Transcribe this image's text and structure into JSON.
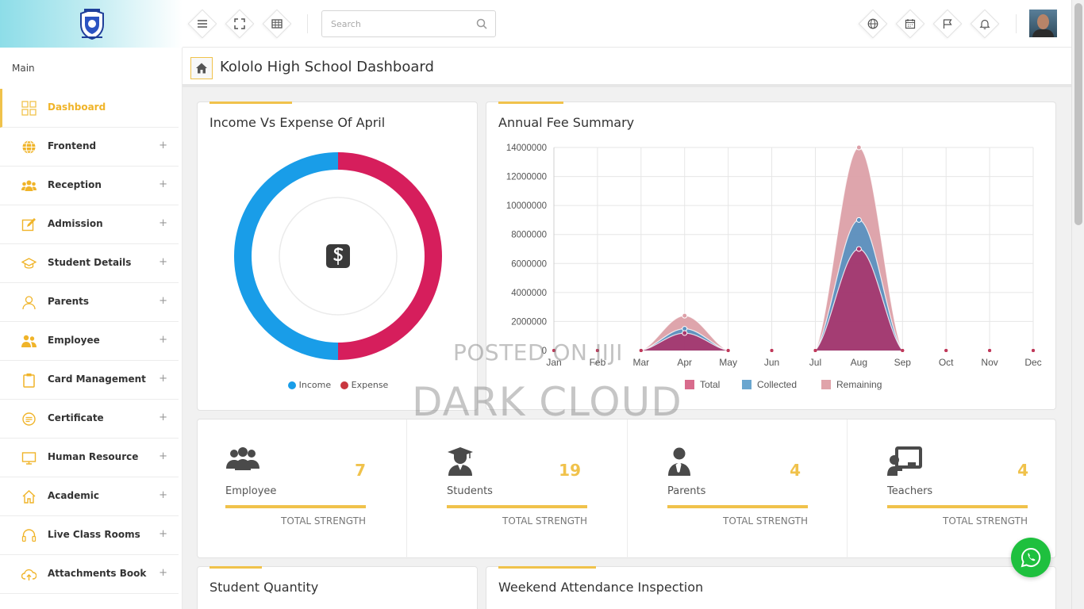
{
  "header": {
    "search_placeholder": "Search",
    "toolbar_icons": [
      "menu-icon",
      "fullscreen-icon",
      "grid-icon"
    ],
    "right_icons": [
      "globe-icon",
      "calendar-icon",
      "flag-icon",
      "bell-icon"
    ]
  },
  "sidebar": {
    "section_label": "Main",
    "items": [
      {
        "label": "Dashboard",
        "icon": "dashboard-icon",
        "active": true
      },
      {
        "label": "Frontend",
        "icon": "globe-icon",
        "expandable": "+"
      },
      {
        "label": "Reception",
        "icon": "users-icon",
        "expandable": "+"
      },
      {
        "label": "Admission",
        "icon": "edit-icon",
        "expandable": "+"
      },
      {
        "label": "Student Details",
        "icon": "graduation-cap-icon",
        "expandable": "+"
      },
      {
        "label": "Parents",
        "icon": "user-icon",
        "expandable": "+"
      },
      {
        "label": "Employee",
        "icon": "employee-icon",
        "expandable": "+"
      },
      {
        "label": "Card Management",
        "icon": "clipboard-icon",
        "expandable": "+"
      },
      {
        "label": "Certificate",
        "icon": "certificate-icon",
        "expandable": "+"
      },
      {
        "label": "Human Resource",
        "icon": "monitor-icon",
        "expandable": "+"
      },
      {
        "label": "Academic",
        "icon": "home-icon",
        "expandable": "+"
      },
      {
        "label": "Live Class Rooms",
        "icon": "headset-icon",
        "expandable": "+"
      },
      {
        "label": "Attachments Book",
        "icon": "cloud-upload-icon",
        "expandable": "+"
      }
    ]
  },
  "page": {
    "title": "Kololo High School Dashboard"
  },
  "income_panel": {
    "title": "Income Vs Expense Of April",
    "legend": [
      {
        "label": "Income",
        "color": "#199de8"
      },
      {
        "label": "Expense",
        "color": "#d61e5c"
      }
    ],
    "center_icon": "dollar-app-icon"
  },
  "annual_panel": {
    "title": "Annual Fee Summary"
  },
  "chart_data": [
    {
      "type": "pie",
      "title": "Income Vs Expense Of April",
      "categories": [
        "Income",
        "Expense"
      ],
      "values": [
        50,
        50
      ],
      "colors": [
        "#199de8",
        "#d61e5c"
      ]
    },
    {
      "type": "area",
      "title": "Annual Fee Summary",
      "categories": [
        "Jan",
        "Feb",
        "Mar",
        "Apr",
        "May",
        "Jun",
        "Jul",
        "Aug",
        "Sep",
        "Oct",
        "Nov",
        "Dec"
      ],
      "series": [
        {
          "name": "Total",
          "color": "#d86b8c",
          "values": [
            0,
            0,
            0,
            1200000,
            0,
            0,
            0,
            7000000,
            0,
            0,
            0,
            0
          ]
        },
        {
          "name": "Collected",
          "color": "#6aa6cf",
          "values": [
            0,
            0,
            0,
            1500000,
            0,
            0,
            0,
            9000000,
            0,
            0,
            0,
            0
          ]
        },
        {
          "name": "Remaining",
          "color": "#e0a3aa",
          "values": [
            0,
            0,
            0,
            2400000,
            0,
            0,
            0,
            14000000,
            0,
            0,
            0,
            0
          ]
        }
      ],
      "yticks": [
        "0",
        "2000000",
        "4000000",
        "6000000",
        "8000000",
        "10000000",
        "12000000",
        "14000000"
      ],
      "ylim": [
        0,
        14000000
      ],
      "legend_position": "bottom",
      "grid": true
    }
  ],
  "stats": [
    {
      "label": "Employee",
      "value": "7",
      "footer": "TOTAL STRENGTH",
      "icon": "employees-icon"
    },
    {
      "label": "Students",
      "value": "19",
      "footer": "TOTAL STRENGTH",
      "icon": "student-icon"
    },
    {
      "label": "Parents",
      "value": "4",
      "footer": "TOTAL STRENGTH",
      "icon": "parent-icon"
    },
    {
      "label": "Teachers",
      "value": "4",
      "footer": "TOTAL STRENGTH",
      "icon": "teacher-icon"
    }
  ],
  "bottom_panels": {
    "student_quantity_title": "Student Quantity",
    "weekend_attendance_title": "Weekend Attendance Inspection"
  },
  "watermark": {
    "line1": "POSTED ON JIJI",
    "line2": "DARK CLOUD"
  },
  "colors": {
    "accent": "#f0c24b",
    "whatsapp": "#1ec03e"
  }
}
